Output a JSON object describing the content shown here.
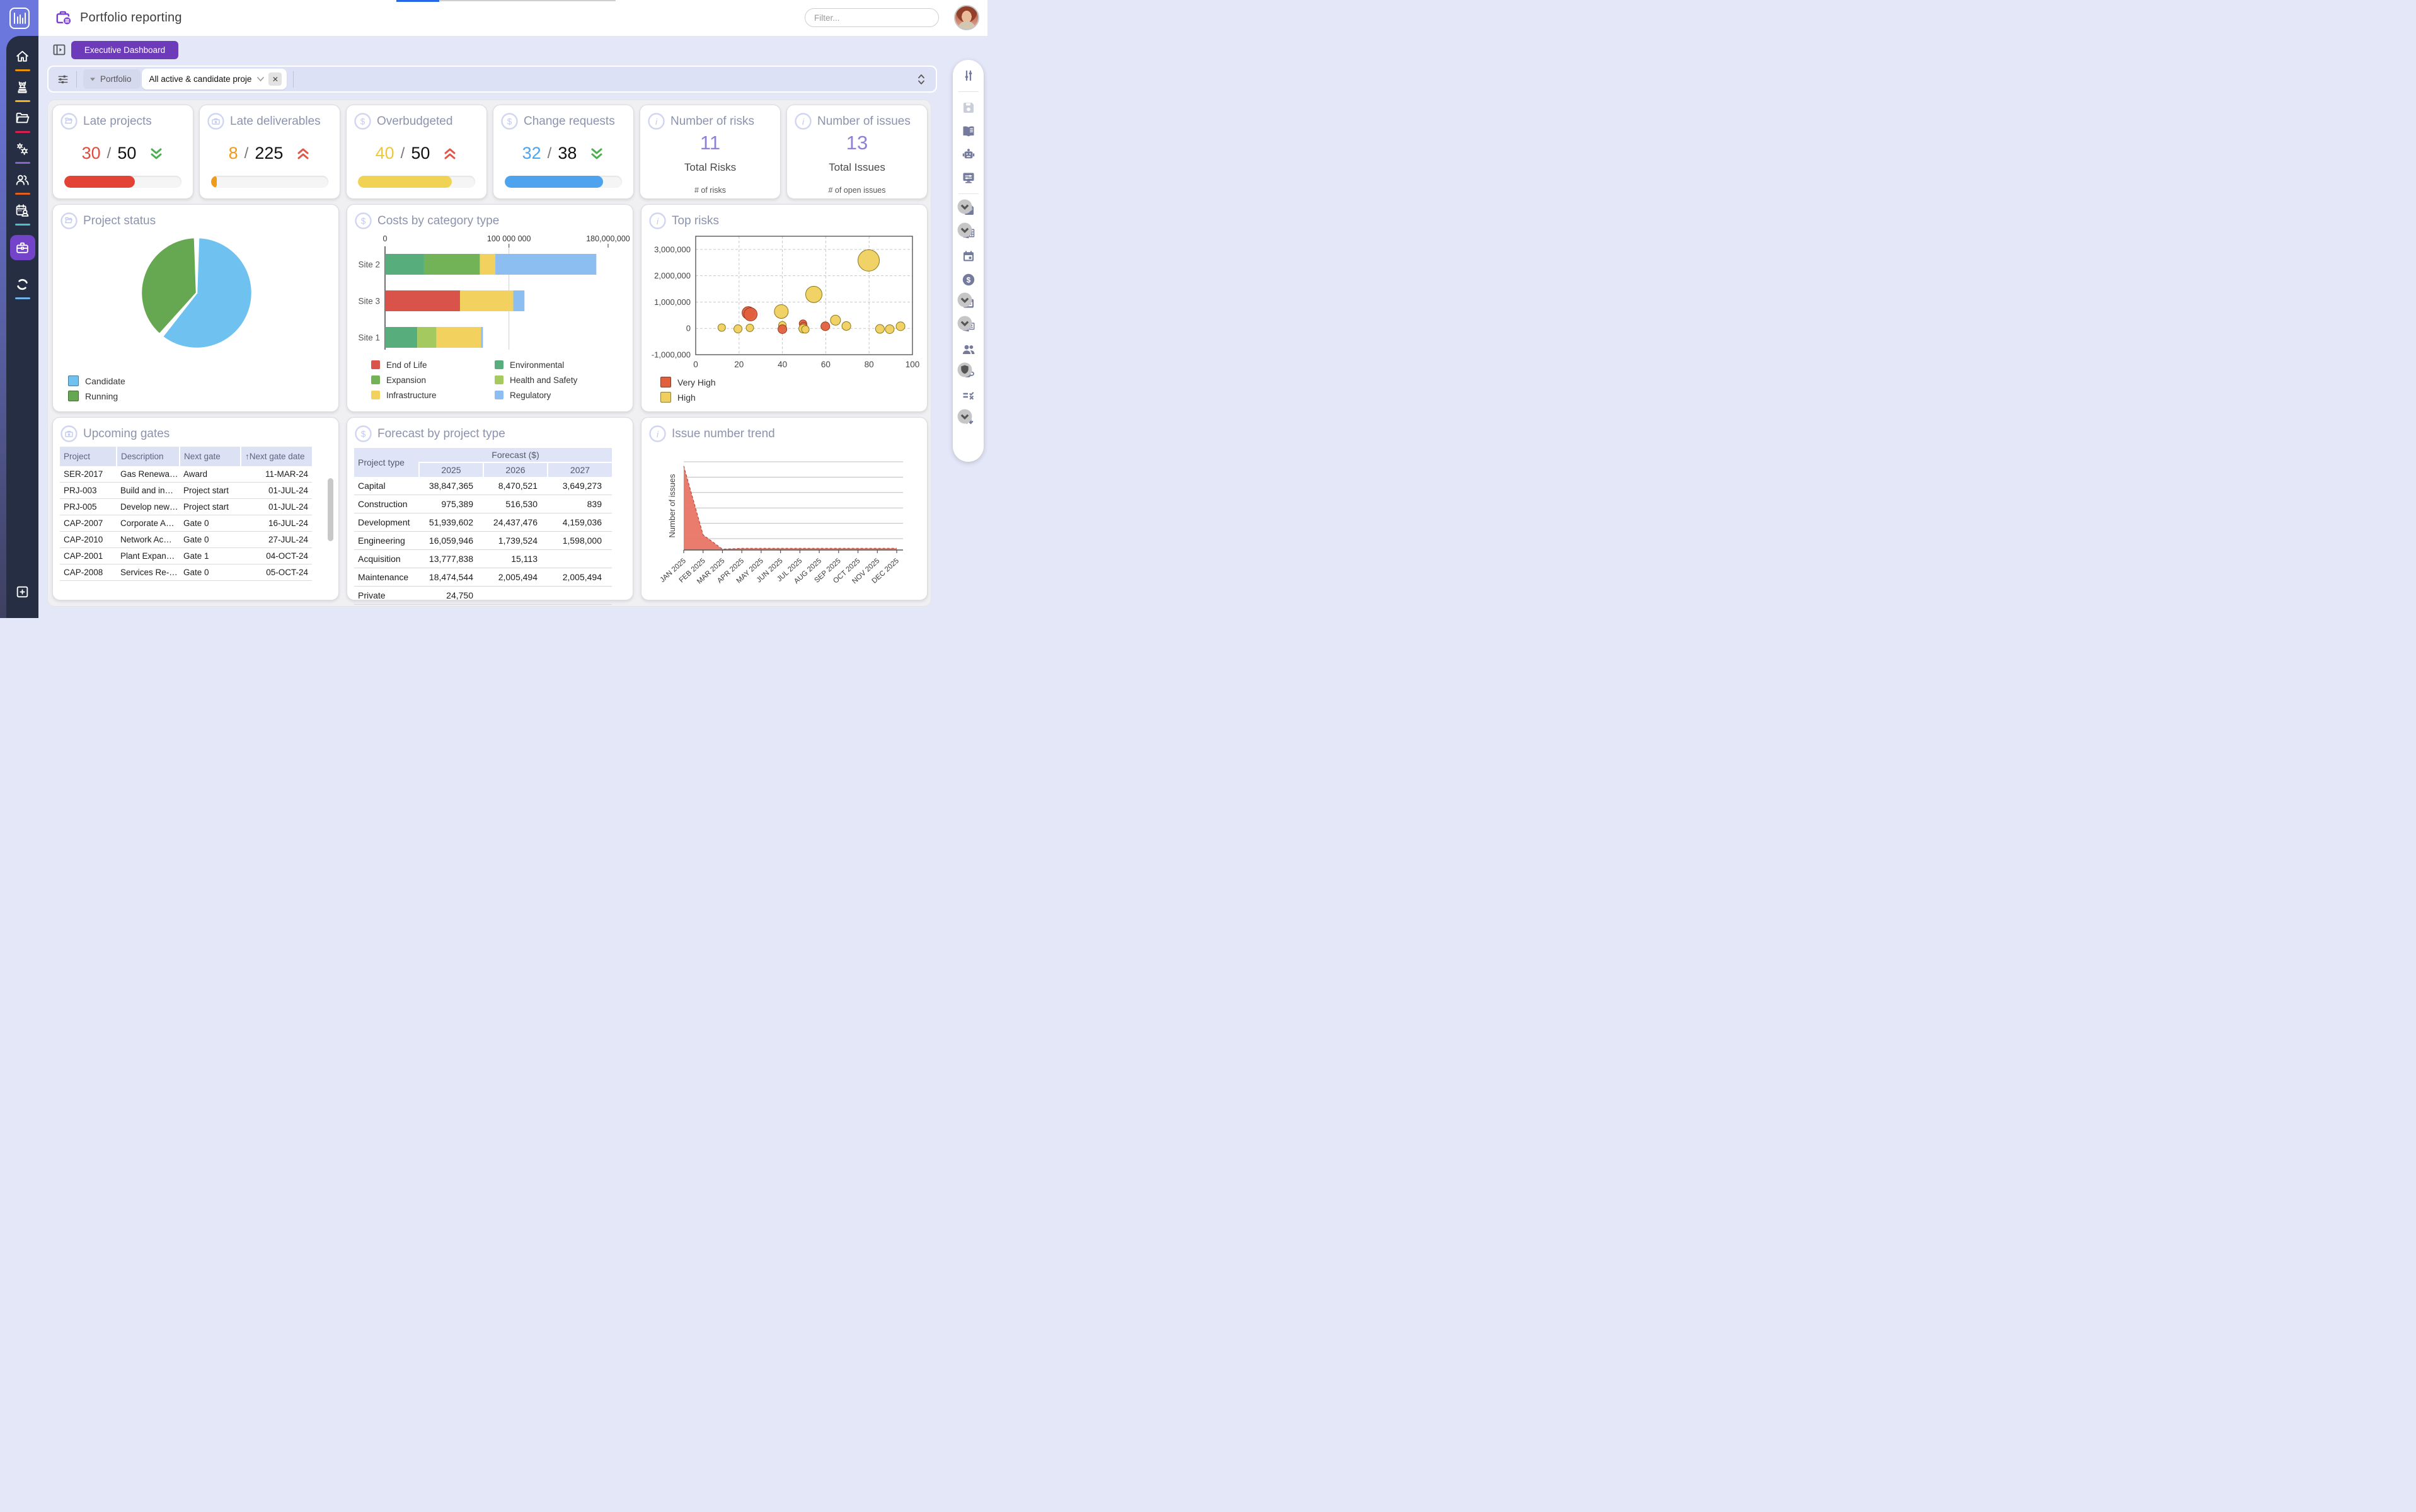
{
  "header": {
    "app_title": "Portfolio reporting",
    "filter_placeholder": "Filter...",
    "logo_icon": "equalizer-bars-logo",
    "title_icon": "portfolio-briefcase-icon"
  },
  "toolbar": {
    "dashboard_button": "Executive Dashboard",
    "expand_icon": "expand-panel-icon"
  },
  "filter_bar": {
    "sliders_icon": "filter-sliders-icon",
    "field_label": "Portfolio",
    "chip_value": "All active & candidate proje",
    "chip_close_icon": "close-icon",
    "spinner_icon": "collapse-expand-spinner-icon"
  },
  "sidebar_left": {
    "items": [
      {
        "name": "home",
        "icon": "home-icon",
        "accent": "#e8920c"
      },
      {
        "name": "strategy",
        "icon": "chess-piece-icon",
        "accent": "#f0b41c"
      },
      {
        "name": "projects",
        "icon": "folder-open-icon",
        "accent": "#d81f4d"
      },
      {
        "name": "processes",
        "icon": "gears-icon",
        "accent": "#8a63c9"
      },
      {
        "name": "people",
        "icon": "people-icon",
        "accent": "#e2601b"
      },
      {
        "name": "resource-planning",
        "icon": "calendar-person-icon",
        "accent": "#4cc0c9"
      },
      {
        "name": "portfolio",
        "icon": "briefcase-icon",
        "accent": "",
        "active": true
      },
      {
        "name": "lifecycle",
        "icon": "sync-circle-icon",
        "accent": "#74b3ea"
      },
      {
        "name": "add-new",
        "icon": "plus-square-icon",
        "accent": ""
      }
    ]
  },
  "right_toolbar": {
    "items": [
      "adjust-sliders-icon",
      "save-icon",
      "book-icon",
      "robot-icon",
      "monitor-settings-icon",
      "export-pdf-icon",
      "export-excel-icon",
      "calendar-icon",
      "dollar-circle-icon",
      "calendar-options-icon",
      "export-powerpoint-icon",
      "team-icon",
      "coffee-shield-icon",
      "checklist-icon",
      "sort-arrows-icon"
    ]
  },
  "kpis": [
    {
      "title": "Late projects",
      "icon": "folder-icon",
      "value": "30",
      "total": "50",
      "value_color": "#e04b3e",
      "trend": "down",
      "trend_color": "#4caf50",
      "bar_pct": 60,
      "bar_color": "#e34335"
    },
    {
      "title": "Late deliverables",
      "icon": "briefcase-icon",
      "value": "8",
      "total": "225",
      "value_color": "#f09a1a",
      "trend": "up",
      "trend_color": "#e0574a",
      "bar_pct": 4,
      "bar_color": "#f09a1a"
    },
    {
      "title": "Overbudgeted",
      "icon": "dollar-icon",
      "value": "40",
      "total": "50",
      "value_color": "#edc83d",
      "trend": "up",
      "trend_color": "#e0574a",
      "bar_pct": 80,
      "bar_color": "#f0d255"
    },
    {
      "title": "Change requests",
      "icon": "dollar-icon",
      "value": "32",
      "total": "38",
      "value_color": "#4da3ee",
      "trend": "down",
      "trend_color": "#4caf50",
      "bar_pct": 84,
      "bar_color": "#4da3ee"
    },
    {
      "title": "Number of risks",
      "icon": "info-icon",
      "big_value": "11",
      "subtitle": "Total Risks",
      "caption": "# of risks"
    },
    {
      "title": "Number of issues",
      "icon": "info-icon",
      "big_value": "13",
      "subtitle": "Total Issues",
      "caption": "# of open issues"
    }
  ],
  "cards": {
    "project_status": {
      "title": "Project status",
      "icon": "folder-icon"
    },
    "costs": {
      "title": "Costs by category type",
      "icon": "dollar-icon"
    },
    "top_risks": {
      "title": "Top risks",
      "icon": "info-icon"
    },
    "upcoming_gates": {
      "title": "Upcoming gates",
      "icon": "briefcase-icon"
    },
    "forecast": {
      "title": "Forecast by project type",
      "icon": "dollar-icon"
    },
    "issue_trend": {
      "title": "Issue number trend",
      "icon": "info-icon"
    }
  },
  "chart_data": [
    {
      "id": "project_status",
      "type": "pie",
      "title": "Project status",
      "slices": [
        {
          "label": "Candidate",
          "value": 60,
          "color": "#6fc1ef",
          "start_deg": 2,
          "end_deg": 218
        },
        {
          "label": "Running",
          "value": 40,
          "color": "#66a851",
          "start_deg": 222,
          "end_deg": 358
        }
      ],
      "legend_position": "bottom-left"
    },
    {
      "id": "costs_by_category",
      "type": "bar",
      "orientation": "horizontal-stacked",
      "title": "Costs by category type",
      "xlim": [
        0,
        180000000
      ],
      "x_ticks": [
        0,
        100000000,
        180000000
      ],
      "x_tick_labels": [
        "0",
        "100 000 000",
        "180,000,000"
      ],
      "categories": [
        "Site 2",
        "Site 3",
        "Site 1"
      ],
      "bars": [
        {
          "label": "Site 2",
          "segments": [
            {
              "category": "Environmental",
              "value": 31500000
            },
            {
              "category": "Expansion",
              "value": 45000000
            },
            {
              "category": "Infrastructure",
              "value": 12500000
            },
            {
              "category": "Regulatory",
              "value": 81500000
            }
          ]
        },
        {
          "label": "Site 3",
          "segments": [
            {
              "category": "End of Life",
              "value": 60500000
            },
            {
              "category": "Infrastructure",
              "value": 43000000
            },
            {
              "category": "Regulatory",
              "value": 9000000
            }
          ]
        },
        {
          "label": "Site 1",
          "segments": [
            {
              "category": "Environmental",
              "value": 26000000
            },
            {
              "category": "Health and Safety",
              "value": 15500000
            },
            {
              "category": "Infrastructure",
              "value": 36000000
            },
            {
              "category": "Regulatory",
              "value": 1500000
            }
          ]
        }
      ],
      "category_colors": {
        "End of Life": "#d9534a",
        "Expansion": "#71b356",
        "Infrastructure": "#f2d15f",
        "Environmental": "#57ad7c",
        "Health and Safety": "#a4ca5f",
        "Regulatory": "#8cbef2"
      },
      "legend_order": [
        "End of Life",
        "Expansion",
        "Infrastructure",
        "Environmental",
        "Health and Safety",
        "Regulatory"
      ],
      "legend_position": "bottom",
      "grid": "vertical-at-100M"
    },
    {
      "id": "top_risks",
      "type": "scatter",
      "title": "Top risks",
      "xlim": [
        0,
        100
      ],
      "ylim": [
        -1000000,
        3500000
      ],
      "x_ticks": [
        0,
        20,
        40,
        60,
        80,
        100
      ],
      "y_ticks": [
        -1000000,
        0,
        1000000,
        2000000,
        3000000
      ],
      "y_tick_labels": [
        "-1,000,000",
        "0",
        "1,000,000",
        "2,000,000",
        "3,000,000"
      ],
      "levels": {
        "Very High": "#e0603e",
        "High": "#efd05e"
      },
      "legend": [
        "Very High",
        "High"
      ],
      "grid": "dashed",
      "points": [
        {
          "x": 12,
          "y": 30000,
          "r": 6,
          "level": "High"
        },
        {
          "x": 19.5,
          "y": -20000,
          "r": 6.5,
          "level": "High"
        },
        {
          "x": 25,
          "y": 20000,
          "r": 6,
          "level": "High"
        },
        {
          "x": 24.3,
          "y": 590000,
          "r": 10,
          "level": "Very High"
        },
        {
          "x": 25.3,
          "y": 535000,
          "r": 10.5,
          "level": "Very High"
        },
        {
          "x": 39.5,
          "y": 640000,
          "r": 11,
          "level": "High"
        },
        {
          "x": 40,
          "y": 120000,
          "r": 6,
          "level": "High"
        },
        {
          "x": 40,
          "y": -30000,
          "r": 7,
          "level": "Very High"
        },
        {
          "x": 49.5,
          "y": 180000,
          "r": 6,
          "level": "Very High"
        },
        {
          "x": 49.8,
          "y": 100000,
          "r": 5.5,
          "level": "Very High"
        },
        {
          "x": 49.6,
          "y": -10000,
          "r": 7,
          "level": "High"
        },
        {
          "x": 50.6,
          "y": -40000,
          "r": 6,
          "level": "High"
        },
        {
          "x": 54.5,
          "y": 1290000,
          "r": 13,
          "level": "High"
        },
        {
          "x": 59.8,
          "y": 80000,
          "r": 7,
          "level": "Very High"
        },
        {
          "x": 64.5,
          "y": 310000,
          "r": 8,
          "level": "High"
        },
        {
          "x": 69.5,
          "y": 90000,
          "r": 7,
          "level": "High"
        },
        {
          "x": 79.8,
          "y": 2580000,
          "r": 17,
          "level": "High"
        },
        {
          "x": 85,
          "y": -20000,
          "r": 7,
          "level": "High"
        },
        {
          "x": 89.5,
          "y": -30000,
          "r": 7,
          "level": "High"
        },
        {
          "x": 94.5,
          "y": 80000,
          "r": 7,
          "level": "High"
        }
      ]
    },
    {
      "id": "issue_trend",
      "type": "area",
      "title": "Issue number trend",
      "ylabel": "Number of issues",
      "color": "#e87767",
      "line_color": "#b44d3e",
      "x_labels": [
        "JAN 2025",
        "FEB 2025",
        "MAR 2025",
        "APR 2025",
        "MAY 2025",
        "JUN 2025",
        "JUL 2025",
        "AUG 2025",
        "SEP 2025",
        "OCT 2025",
        "NOV 2025",
        "DEC 2025"
      ],
      "values": [
        100,
        18,
        1,
        2,
        2,
        2,
        2,
        2,
        2,
        2,
        2,
        2
      ],
      "grid": "horizontal"
    }
  ],
  "upcoming_gates_table": {
    "columns": [
      "Project",
      "Description",
      "Next gate",
      "Next gate date"
    ],
    "sorted_by": "Next gate date",
    "sort_icon": "sort-ascending-arrow-icon",
    "rows": [
      [
        "SER-2017",
        "Gas Renewa…",
        "Award",
        "11-MAR-24"
      ],
      [
        "PRJ-003",
        "Build and in…",
        "Project start",
        "01-JUL-24"
      ],
      [
        "PRJ-005",
        "Develop new…",
        "Project start",
        "01-JUL-24"
      ],
      [
        "CAP-2007",
        "Corporate A…",
        "Gate 0",
        "16-JUL-24"
      ],
      [
        "CAP-2010",
        "Network Ac…",
        "Gate 0",
        "27-JUL-24"
      ],
      [
        "CAP-2001",
        "Plant Expan…",
        "Gate 1",
        "04-OCT-24"
      ],
      [
        "CAP-2008",
        "Services Re-…",
        "Gate 0",
        "05-OCT-24"
      ]
    ]
  },
  "forecast_table": {
    "first_col": "Project type",
    "col_group": "Forecast ($)",
    "year_cols": [
      "2025",
      "2026",
      "2027"
    ],
    "rows": [
      [
        "Capital",
        "38,847,365",
        "8,470,521",
        "3,649,273"
      ],
      [
        "Construction",
        "975,389",
        "516,530",
        "839"
      ],
      [
        "Development",
        "51,939,602",
        "24,437,476",
        "4,159,036"
      ],
      [
        "Engineering",
        "16,059,946",
        "1,739,524",
        "1,598,000"
      ],
      [
        "Acquisition",
        "13,777,838",
        "15,113",
        ""
      ],
      [
        "Maintenance",
        "18,474,544",
        "2,005,494",
        "2,005,494"
      ],
      [
        "Private",
        "24,750",
        "",
        ""
      ]
    ]
  }
}
